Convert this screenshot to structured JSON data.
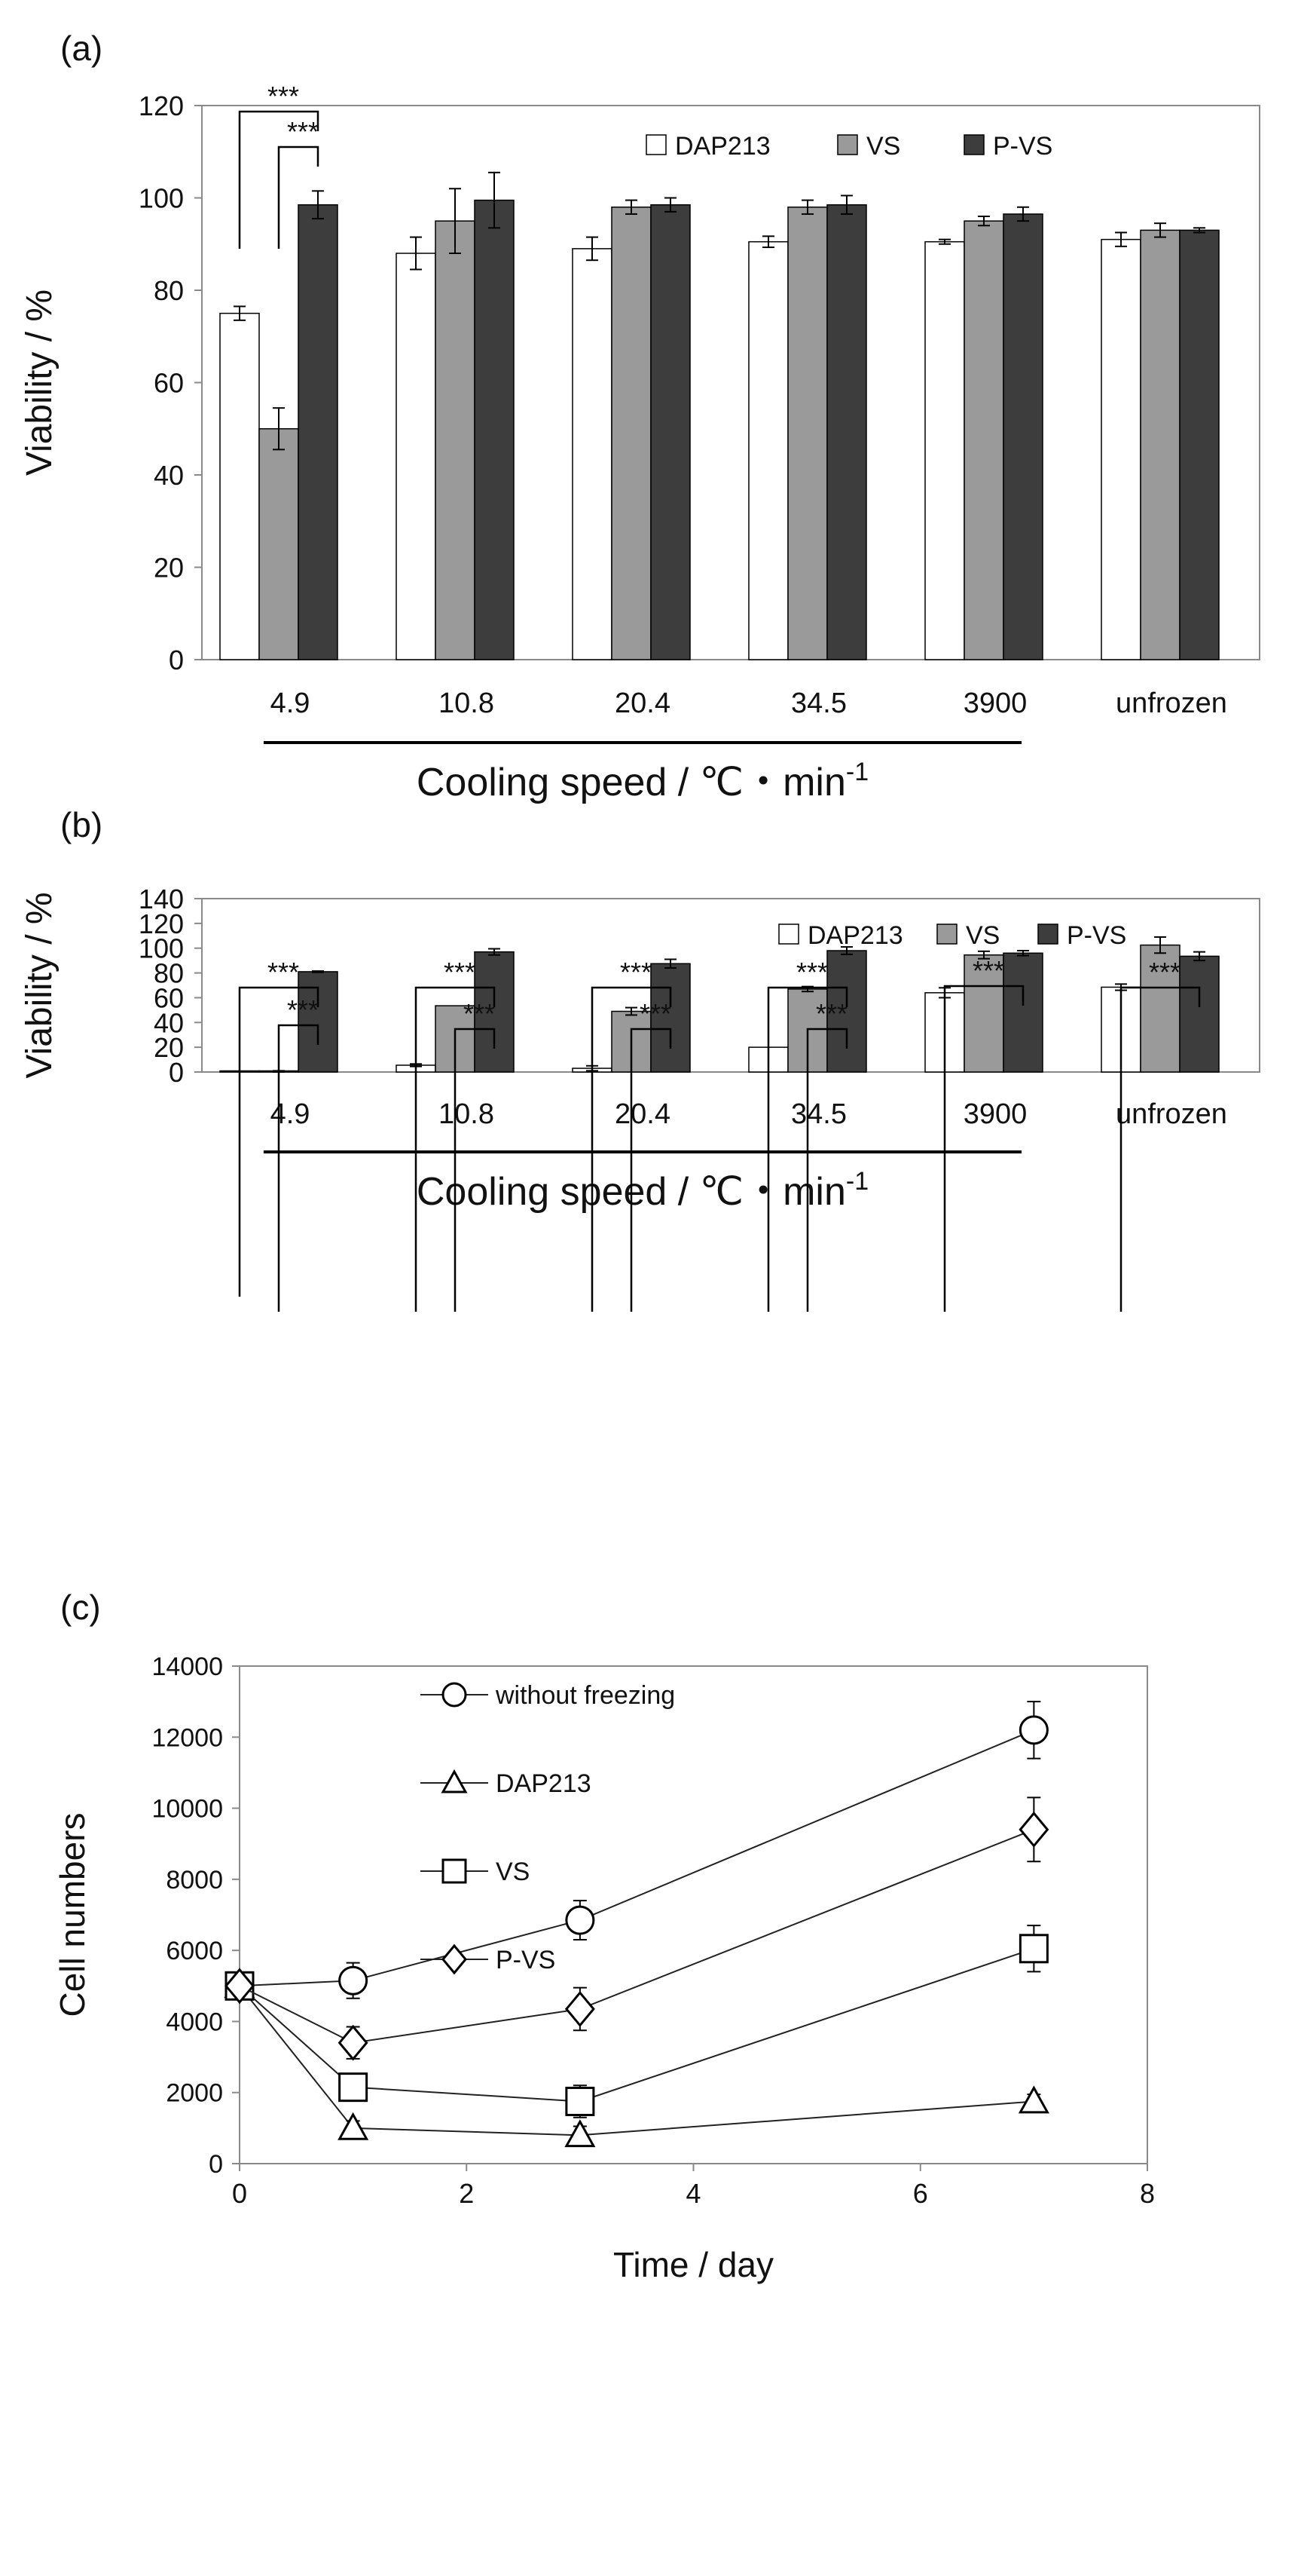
{
  "colors": {
    "dap213": "#ffffff",
    "vs": "#9a9a9a",
    "pvs": "#3d3d3d",
    "axis": "#8a8a8a",
    "ink": "#111111"
  },
  "chart_data": [
    {
      "type": "bar",
      "panel_label": "(a)",
      "ylabel": "Viability / %",
      "xlabel_main": "Cooling speed / ℃・min",
      "xlabel_sup": "-1",
      "ylim": [
        0,
        120
      ],
      "yticks": [
        0,
        20,
        40,
        60,
        80,
        100,
        120
      ],
      "categories": [
        "4.9",
        "10.8",
        "20.4",
        "34.5",
        "3900",
        "unfrozen"
      ],
      "series": [
        {
          "name": "DAP213",
          "values": [
            75,
            88,
            89,
            90.5,
            90.5,
            91
          ],
          "errors": [
            1.5,
            3.5,
            2.5,
            1.2,
            0.5,
            1.5
          ]
        },
        {
          "name": "VS",
          "values": [
            50,
            95,
            98,
            98,
            95,
            93
          ],
          "errors": [
            4.5,
            7,
            1.5,
            1.5,
            1,
            1.5
          ]
        },
        {
          "name": "P-VS",
          "values": [
            98.5,
            99.5,
            98.5,
            98.5,
            96.5,
            93
          ],
          "errors": [
            3,
            6,
            1.5,
            2,
            1.5,
            0.5
          ]
        }
      ],
      "significance": [
        {
          "label": "***",
          "category": 0,
          "from": "DAP213",
          "to": "P-VS"
        },
        {
          "label": "***",
          "category": 0,
          "from": "VS",
          "to": "P-VS"
        }
      ],
      "legend_position": "top-right"
    },
    {
      "type": "bar",
      "panel_label": "(b)",
      "ylabel": "Viability / %",
      "xlabel_main": "Cooling speed / ℃・min",
      "xlabel_sup": "-1",
      "ylim": [
        0,
        140
      ],
      "yticks": [
        0,
        20,
        40,
        60,
        80,
        100,
        120,
        140
      ],
      "categories": [
        "4.9",
        "10.8",
        "20.4",
        "34.5",
        "3900",
        "unfrozen"
      ],
      "series": [
        {
          "name": "DAP213",
          "values": [
            0.3,
            5.5,
            3,
            20,
            64,
            68.5
          ],
          "errors": [
            0,
            1,
            2,
            0,
            4,
            2.5
          ]
        },
        {
          "name": "VS",
          "values": [
            0.5,
            53.5,
            49,
            67,
            94.5,
            102.5
          ],
          "errors": [
            0.5,
            0,
            3,
            2,
            3,
            6.5
          ]
        },
        {
          "name": "P-VS",
          "values": [
            81,
            97,
            87.5,
            98,
            96,
            93.5
          ],
          "errors": [
            0.5,
            2.5,
            3.5,
            3,
            2,
            3.5
          ]
        }
      ],
      "significance": [
        {
          "label": "***",
          "category": 0,
          "from": "DAP213",
          "to": "P-VS"
        },
        {
          "label": "***",
          "category": 0,
          "from": "VS",
          "to": "P-VS"
        },
        {
          "label": "***",
          "category": 1,
          "from": "DAP213",
          "to": "P-VS"
        },
        {
          "label": "***",
          "category": 1,
          "from": "VS",
          "to": "P-VS"
        },
        {
          "label": "***",
          "category": 2,
          "from": "DAP213",
          "to": "P-VS"
        },
        {
          "label": "***",
          "category": 2,
          "from": "VS",
          "to": "P-VS"
        },
        {
          "label": "***",
          "category": 3,
          "from": "DAP213",
          "to": "P-VS"
        },
        {
          "label": "***",
          "category": 3,
          "from": "VS",
          "to": "P-VS"
        },
        {
          "label": "***",
          "category": 4,
          "from": "DAP213",
          "to": "P-VS"
        },
        {
          "label": "***",
          "category": 5,
          "from": "DAP213",
          "to": "P-VS"
        }
      ],
      "legend_position": "top-right"
    },
    {
      "type": "line",
      "panel_label": "(c)",
      "xlabel": "Time / day",
      "ylabel": "Cell numbers",
      "xlim": [
        0,
        8
      ],
      "ylim": [
        0,
        14000
      ],
      "xticks": [
        0,
        2,
        4,
        6,
        8
      ],
      "yticks": [
        0,
        2000,
        4000,
        6000,
        8000,
        10000,
        12000,
        14000
      ],
      "x": [
        0,
        1,
        3,
        7
      ],
      "series": [
        {
          "name": "without freezing",
          "marker": "circle",
          "values": [
            5000,
            5150,
            6850,
            12200
          ],
          "errors": [
            150,
            500,
            550,
            800
          ]
        },
        {
          "name": "DAP213",
          "marker": "triangle",
          "values": [
            5000,
            1000,
            800,
            1750
          ],
          "errors": [
            150,
            200,
            250,
            200
          ]
        },
        {
          "name": "VS",
          "marker": "square",
          "values": [
            5000,
            2150,
            1750,
            6050
          ],
          "errors": [
            150,
            200,
            450,
            650
          ]
        },
        {
          "name": "P-VS",
          "marker": "diamond",
          "values": [
            5000,
            3400,
            4350,
            9400
          ],
          "errors": [
            150,
            450,
            600,
            900
          ]
        }
      ],
      "legend_position": "top-left"
    }
  ]
}
